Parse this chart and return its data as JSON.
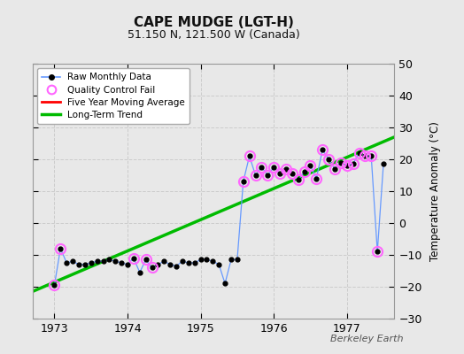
{
  "title": "CAPE MUDGE (LGT-H)",
  "subtitle": "51.150 N, 121.500 W (Canada)",
  "ylabel": "Temperature Anomaly (°C)",
  "watermark": "Berkeley Earth",
  "xlim": [
    1972.7,
    1977.65
  ],
  "ylim": [
    -30,
    50
  ],
  "yticks": [
    -30,
    -20,
    -10,
    0,
    10,
    20,
    30,
    40,
    50
  ],
  "xticks": [
    1973,
    1974,
    1975,
    1976,
    1977
  ],
  "outer_bg": "#e8e8e8",
  "plot_bg": "#e8e8e8",
  "raw_x": [
    1973.0,
    1973.083,
    1973.167,
    1973.25,
    1973.333,
    1973.417,
    1973.5,
    1973.583,
    1973.667,
    1973.75,
    1973.833,
    1973.917,
    1974.0,
    1974.083,
    1974.167,
    1974.25,
    1974.333,
    1974.417,
    1974.5,
    1974.583,
    1974.667,
    1974.75,
    1974.833,
    1974.917,
    1975.0,
    1975.083,
    1975.167,
    1975.25,
    1975.333,
    1975.417,
    1975.5,
    1975.583,
    1975.667,
    1975.75,
    1975.833,
    1975.917,
    1976.0,
    1976.083,
    1976.167,
    1976.25,
    1976.333,
    1976.417,
    1976.5,
    1976.583,
    1976.667,
    1976.75,
    1976.833,
    1976.917,
    1977.0,
    1977.083,
    1977.167,
    1977.25,
    1977.333,
    1977.417,
    1977.5
  ],
  "raw_y": [
    -19.5,
    -8.0,
    -12.5,
    -12.0,
    -13.0,
    -13.0,
    -12.5,
    -12.0,
    -12.0,
    -11.5,
    -12.0,
    -12.5,
    -13.0,
    -11.0,
    -15.5,
    -11.5,
    -14.0,
    -13.0,
    -12.0,
    -13.0,
    -13.5,
    -12.0,
    -12.5,
    -12.5,
    -11.5,
    -11.5,
    -12.0,
    -13.0,
    -19.0,
    -11.5,
    -11.5,
    13.0,
    21.0,
    15.0,
    17.5,
    15.0,
    17.5,
    15.5,
    17.0,
    15.5,
    13.5,
    16.0,
    18.0,
    14.0,
    23.0,
    20.0,
    17.0,
    19.0,
    18.0,
    18.5,
    22.0,
    21.0,
    21.0,
    -9.0,
    18.5
  ],
  "qc_fail_x": [
    1973.0,
    1973.083,
    1974.083,
    1974.25,
    1974.333,
    1975.583,
    1975.667,
    1975.75,
    1975.833,
    1975.917,
    1976.0,
    1976.083,
    1976.167,
    1976.25,
    1976.333,
    1976.417,
    1976.5,
    1976.583,
    1976.667,
    1976.75,
    1976.833,
    1976.917,
    1977.0,
    1977.083,
    1977.167,
    1977.25,
    1977.333,
    1977.417
  ],
  "qc_fail_y": [
    -19.5,
    -8.0,
    -11.0,
    -11.5,
    -14.0,
    13.0,
    21.0,
    15.0,
    17.5,
    15.0,
    17.5,
    15.5,
    17.0,
    15.5,
    13.5,
    16.0,
    18.0,
    14.0,
    23.0,
    20.0,
    17.0,
    19.0,
    18.0,
    18.5,
    22.0,
    21.0,
    21.0,
    -9.0
  ],
  "trend_x": [
    1972.7,
    1977.65
  ],
  "trend_y": [
    -21.5,
    27.0
  ],
  "raw_line_color": "#6699ff",
  "raw_marker_color": "#000000",
  "qc_color": "#ff66ff",
  "trend_color": "#00bb00",
  "mavg_color": "#ff0000",
  "grid_color": "#cccccc",
  "spine_color": "#999999"
}
